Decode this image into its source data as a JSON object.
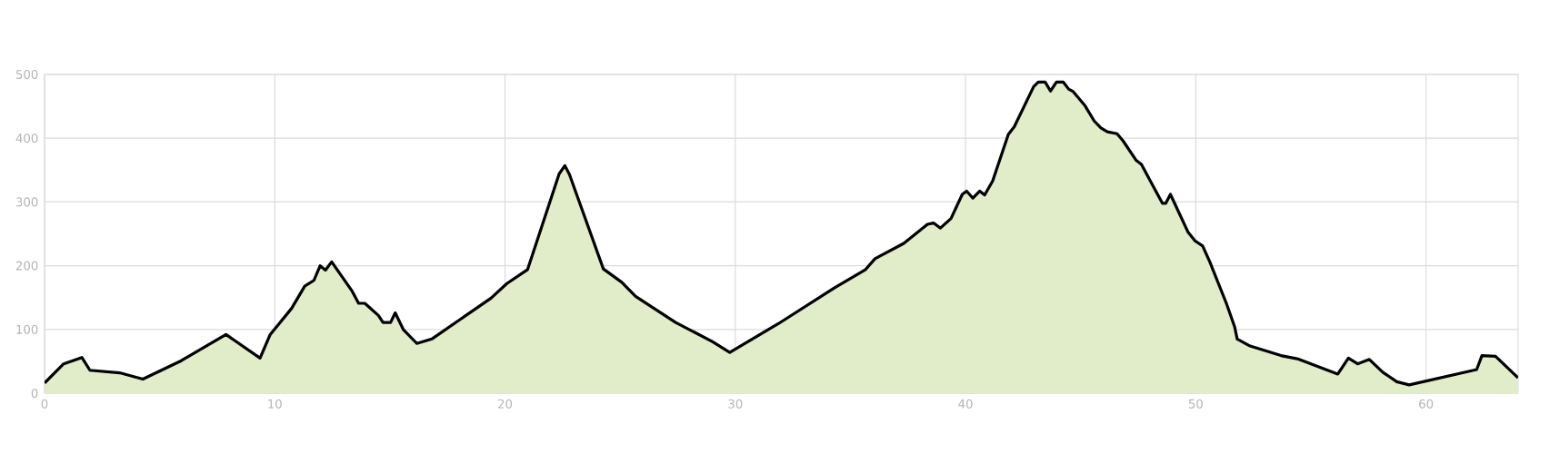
{
  "chart_data": {
    "type": "area",
    "xlim": [
      0,
      64
    ],
    "ylim": [
      0,
      500
    ],
    "xticks": [
      0,
      10,
      20,
      30,
      40,
      50,
      60
    ],
    "yticks": [
      0,
      100,
      200,
      300,
      400,
      500
    ],
    "grid": true,
    "marker": "none",
    "line_style": "solid",
    "series": [
      {
        "color": "#e1edc9",
        "x": [
          0,
          0.83,
          1.62,
          1.97,
          3.26,
          4.27,
          5.94,
          7.88,
          9.36,
          9.8,
          10.73,
          11.3,
          11.7,
          11.97,
          12.2,
          12.47,
          13.36,
          13.64,
          13.91,
          14.5,
          14.7,
          15.03,
          15.23,
          15.58,
          16.17,
          16.82,
          19.39,
          20.08,
          20.98,
          22.35,
          22.6,
          22.8,
          24.27,
          25.07,
          25.67,
          27.41,
          29.0,
          29.76,
          31.87,
          34.3,
          35.66,
          36.07,
          37.32,
          38.35,
          38.61,
          38.91,
          39.37,
          39.86,
          40.05,
          40.32,
          40.62,
          40.83,
          41.18,
          41.86,
          42.12,
          42.96,
          43.16,
          43.46,
          43.69,
          43.95,
          44.25,
          44.48,
          44.68,
          45.17,
          45.59,
          45.88,
          46.16,
          46.58,
          46.84,
          47.42,
          47.64,
          48.55,
          48.7,
          48.9,
          49.66,
          49.97,
          50.3,
          50.61,
          51.34,
          51.69,
          51.8,
          52.36,
          53.7,
          54.41,
          56.17,
          56.63,
          57.03,
          57.54,
          58.12,
          58.73,
          59.27,
          62.2,
          62.43,
          63.02,
          64.0
        ],
        "values": [
          16,
          46,
          56,
          36,
          32,
          22,
          51,
          92,
          55,
          92,
          133,
          168,
          177,
          200,
          193,
          206,
          160,
          141,
          141,
          122,
          111,
          111,
          126,
          100,
          78,
          85,
          149,
          172,
          194,
          344,
          357,
          343,
          195,
          174,
          152,
          111,
          81,
          64,
          109,
          165,
          194,
          211,
          235,
          265,
          267,
          259,
          274,
          312,
          317,
          306,
          317,
          311,
          333,
          406,
          418,
          481,
          488,
          488,
          474,
          488,
          488,
          477,
          473,
          452,
          427,
          416,
          410,
          407,
          396,
          365,
          359,
          298,
          298,
          312,
          253,
          239,
          231,
          206,
          140,
          104,
          85,
          74,
          59,
          54,
          30,
          55,
          46,
          53,
          33,
          18,
          13,
          37,
          59,
          58,
          24
        ]
      }
    ]
  }
}
